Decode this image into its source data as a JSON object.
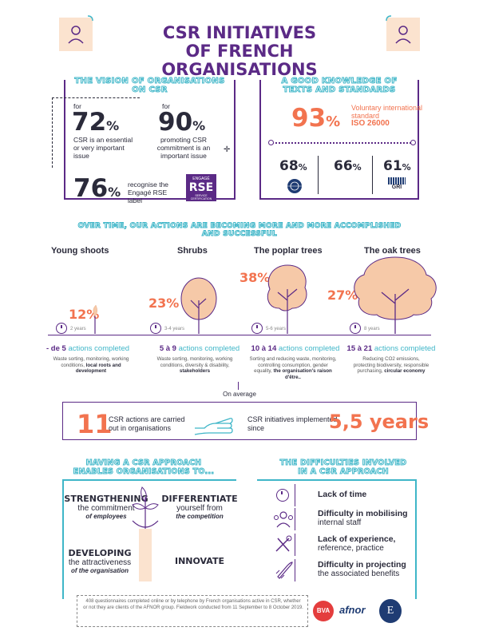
{
  "header": {
    "title_line1": "CSR INITIATIVES",
    "title_line2": "OF FRENCH ORGANISATIONS"
  },
  "vision": {
    "title_line1": "THE VISION OF ORGANISATIONS",
    "title_line2": "ON CSR",
    "stat1": {
      "prefix": "for",
      "value": "72",
      "unit": "%",
      "text": "CSR is an essential or very important issue"
    },
    "stat2": {
      "prefix": "for",
      "value": "90",
      "unit": "%",
      "text": "promoting CSR commitment is an important issue"
    },
    "stat3": {
      "value": "76",
      "unit": "%",
      "text": "recognise the Engagé RSE label"
    },
    "label": {
      "top": "ENGAGÉ",
      "main": "RSE",
      "bottom": "SERVICE CERTIFICATION"
    }
  },
  "standards": {
    "title_line1": "A GOOD KNOWLEDGE OF",
    "title_line2": "TEXTS AND STANDARDS",
    "main_value": "93",
    "main_unit": "%",
    "main_text": "Voluntary international standard",
    "main_name": "ISO 26000",
    "items": [
      {
        "value": "68",
        "unit": "%",
        "logo": "THE GLOBAL COMPACT"
      },
      {
        "value": "66",
        "unit": "%",
        "logo": ""
      },
      {
        "value": "61",
        "unit": "%",
        "logo": "GRI"
      }
    ]
  },
  "progress": {
    "title_line1": "OVER TIME, OUR ACTIONS ARE BECOMING MORE AND MORE ACCOMPLISHED",
    "title_line2": "AND SUCCESSFUL",
    "stages": [
      {
        "name": "Young shoots",
        "pct": "12%",
        "years": "2 years",
        "count_prefix": "- de 5",
        "count_suffix": "actions completed",
        "desc": "Waste sorting, monitoring, working conditions,",
        "desc_bold": "local roots and development"
      },
      {
        "name": "Shrubs",
        "pct": "23%",
        "years": "3-4 years",
        "count_prefix": "5 à 9",
        "count_suffix": "actions completed",
        "desc": "Waste sorting, monitoring, working conditions, diversity & disability,",
        "desc_bold": "stakeholders"
      },
      {
        "name": "The poplar trees",
        "pct": "38%",
        "years": "5-6 years",
        "count_prefix": "10 à 14",
        "count_suffix": "actions completed",
        "desc": "Sorting and reducing waste, monitoring, controlling consumption, gender equality,",
        "desc_bold": "the organisation's raison d'être.."
      },
      {
        "name": "The oak trees",
        "pct": "27%",
        "years": "8 years",
        "count_prefix": "15 à 21",
        "count_suffix": "actions completed",
        "desc": "Reducing CO2 emissions, protecting biodiversity, responsible purchasing,",
        "desc_bold": "circular economy"
      }
    ],
    "average_label": "On average",
    "avg_actions_value": "11",
    "avg_actions_text": "CSR actions are carried out in organisations",
    "avg_years_text": "CSR initiatives implemented since",
    "avg_years_value": "5,5 years"
  },
  "approach": {
    "title_line1": "HAVING A CSR APPROACH",
    "title_line2": "ENABLES ORGANISATIONS TO...",
    "items": [
      {
        "bold": "STRENGTHENING",
        "line": "the commitment",
        "italic": "of employees"
      },
      {
        "bold": "DIFFERENTIATE",
        "line": "yourself from",
        "italic": "the competition"
      },
      {
        "bold": "DEVELOPING",
        "line": "the attractiveness",
        "italic": "of the organisation"
      },
      {
        "bold": "INNOVATE",
        "line": "",
        "italic": ""
      }
    ]
  },
  "difficulties": {
    "title_line1": "THE DIFFICULTIES INVOLVED",
    "title_line2": "IN A CSR APPROACH",
    "items": [
      {
        "icon": "clock-icon",
        "bold": "Lack of time",
        "rest": ""
      },
      {
        "icon": "people-icon",
        "bold": "Difficulty in mobilising",
        "rest": "internal staff"
      },
      {
        "icon": "tools-icon",
        "bold": "Lack of experience,",
        "rest": "reference, practice"
      },
      {
        "icon": "rocket-icon",
        "bold": "Difficulty in projecting",
        "rest": "the associated benefits"
      }
    ]
  },
  "footer": {
    "note": "408 questionnaires completed online or by telephone by French organisations active in CSR, whether or not they are clients of the AFNOR group. Fieldwork conducted from 11 September to 8 October 2019.",
    "logos": [
      "BVA",
      "afnor",
      "E"
    ]
  },
  "colors": {
    "purple": "#5b2a86",
    "orange": "#f2734f",
    "teal": "#3fb6c8",
    "tree": "#f6c9a8"
  }
}
